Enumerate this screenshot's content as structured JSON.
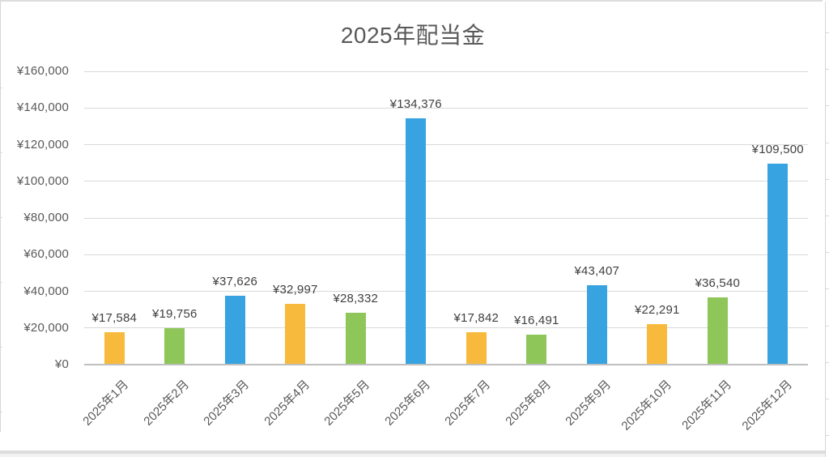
{
  "chart_data": {
    "type": "bar",
    "title": "2025年配当金",
    "categories": [
      "2025年1月",
      "2025年2月",
      "2025年3月",
      "2025年4月",
      "2025年5月",
      "2025年6月",
      "2025年7月",
      "2025年8月",
      "2025年9月",
      "2025年10月",
      "2025年11月",
      "2025年12月"
    ],
    "values": [
      17584,
      19756,
      37626,
      32997,
      28332,
      134376,
      17842,
      16491,
      43407,
      22291,
      36540,
      109500
    ],
    "data_labels": [
      "¥17,584",
      "¥19,756",
      "¥37,626",
      "¥32,997",
      "¥28,332",
      "¥134,376",
      "¥17,842",
      "¥16,491",
      "¥43,407",
      "¥22,291",
      "¥36,540",
      "¥109,500"
    ],
    "xlabel": "",
    "ylabel": "",
    "y_axis": {
      "min": 0,
      "max": 160000,
      "step": 20000,
      "tick_labels": [
        "¥0",
        "¥20,000",
        "¥40,000",
        "¥60,000",
        "¥80,000",
        "¥100,000",
        "¥120,000",
        "¥140,000",
        "¥160,000"
      ]
    },
    "grid": true,
    "legend": "none",
    "bar_color_cycle": [
      "orange",
      "green",
      "blue"
    ]
  },
  "colors": {
    "orange": "#F8BA3C",
    "green": "#8EC65A",
    "blue": "#38A3E1",
    "gridline": "#D9D9D9",
    "axis_line": "#BFBFBF",
    "title_text": "#595959",
    "axis_text": "#595959",
    "data_label_text": "#404040"
  }
}
